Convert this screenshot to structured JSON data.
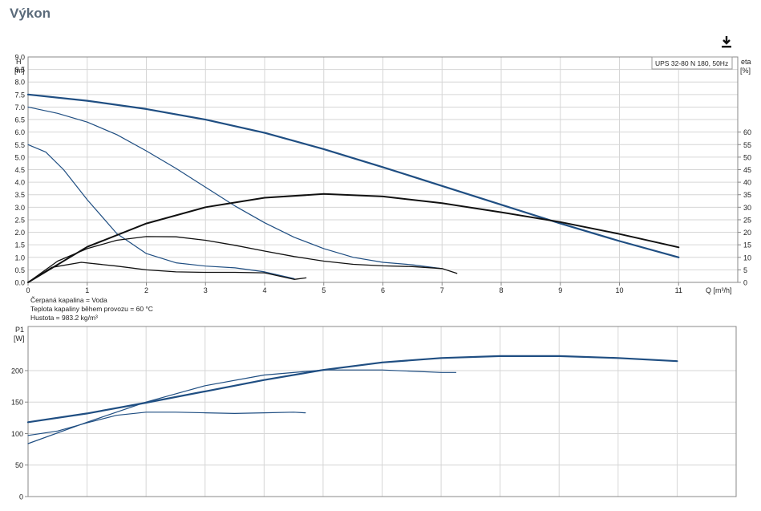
{
  "page": {
    "title": "Výkon",
    "download_icon": "download-icon"
  },
  "colors": {
    "blue": "#1f4e82",
    "black": "#111111",
    "grid": "#d6d6d6",
    "frame": "#888888"
  },
  "chart_data": [
    {
      "type": "line",
      "name": "head",
      "legend": "UPS 32-80 N 180, 50Hz",
      "y_label_top": "H",
      "y_unit": "[m]",
      "y2_label_top": "eta",
      "y2_unit": "[%]",
      "x_label": "Q [m³/h]",
      "xlim": [
        0,
        12
      ],
      "ylim": [
        0,
        9.0
      ],
      "y2lim": [
        0,
        90
      ],
      "x_ticks": [
        0,
        1,
        2,
        3,
        4,
        5,
        6,
        7,
        8,
        9,
        10,
        11
      ],
      "y_ticks": [
        "0.0",
        "0.5",
        "1.0",
        "1.5",
        "2.0",
        "2.5",
        "3.0",
        "3.5",
        "4.0",
        "4.5",
        "5.0",
        "5.5",
        "6.0",
        "6.5",
        "7.0",
        "7.5",
        "8.0",
        "8.5",
        "9.0"
      ],
      "y2_ticks": [
        0,
        5,
        10,
        15,
        20,
        25,
        30,
        35,
        40,
        45,
        50,
        55,
        60
      ],
      "notes": [
        "Čerpaná kapalina = Voda",
        "Teplota kapaliny během provozu = 60 °C",
        "Hustota = 983.2 kg/m³"
      ],
      "series": [
        {
          "axis": "H",
          "color": "blue",
          "width": 2.2,
          "points": [
            [
              0,
              7.5
            ],
            [
              1,
              7.25
            ],
            [
              2,
              6.92
            ],
            [
              3,
              6.5
            ],
            [
              4,
              5.97
            ],
            [
              5,
              5.32
            ],
            [
              6,
              4.6
            ],
            [
              7,
              3.85
            ],
            [
              8,
              3.1
            ],
            [
              9,
              2.35
            ],
            [
              10,
              1.65
            ],
            [
              11,
              1.0
            ]
          ]
        },
        {
          "axis": "H",
          "color": "blue",
          "width": 1.2,
          "points": [
            [
              0,
              7.0
            ],
            [
              0.5,
              6.75
            ],
            [
              1,
              6.4
            ],
            [
              1.5,
              5.9
            ],
            [
              2,
              5.25
            ],
            [
              2.5,
              4.55
            ],
            [
              3,
              3.8
            ],
            [
              3.5,
              3.05
            ],
            [
              4,
              2.38
            ],
            [
              4.5,
              1.8
            ],
            [
              5,
              1.35
            ],
            [
              5.5,
              1.0
            ],
            [
              6,
              0.8
            ],
            [
              6.5,
              0.7
            ],
            [
              7,
              0.55
            ]
          ]
        },
        {
          "axis": "H",
          "color": "blue",
          "width": 1.2,
          "points": [
            [
              0,
              5.5
            ],
            [
              0.3,
              5.2
            ],
            [
              0.6,
              4.5
            ],
            [
              1,
              3.3
            ],
            [
              1.5,
              1.95
            ],
            [
              2,
              1.15
            ],
            [
              2.5,
              0.78
            ],
            [
              3,
              0.65
            ],
            [
              3.5,
              0.58
            ],
            [
              4,
              0.42
            ],
            [
              4.5,
              0.15
            ]
          ]
        },
        {
          "axis": "eta",
          "color": "black",
          "width": 2.0,
          "points": [
            [
              0,
              0
            ],
            [
              1,
              14.2
            ],
            [
              2,
              23.5
            ],
            [
              3,
              30
            ],
            [
              4,
              33.8
            ],
            [
              5,
              35.3
            ],
            [
              6,
              34.3
            ],
            [
              7,
              31.6
            ],
            [
              8,
              28.0
            ],
            [
              9,
              24.1
            ],
            [
              10,
              19.3
            ],
            [
              11,
              14.0
            ]
          ]
        },
        {
          "axis": "eta",
          "color": "black",
          "width": 1.3,
          "points": [
            [
              0,
              0
            ],
            [
              0.5,
              8.5
            ],
            [
              1,
              13.5
            ],
            [
              1.5,
              16.8
            ],
            [
              2,
              18.3
            ],
            [
              2.5,
              18.2
            ],
            [
              3,
              16.8
            ],
            [
              3.5,
              14.8
            ],
            [
              4,
              12.5
            ],
            [
              4.5,
              10.3
            ],
            [
              5,
              8.5
            ],
            [
              5.5,
              7.2
            ],
            [
              6,
              6.6
            ],
            [
              6.5,
              6.3
            ],
            [
              7,
              5.5
            ],
            [
              7.25,
              3.6
            ]
          ]
        },
        {
          "axis": "eta",
          "color": "black",
          "width": 1.3,
          "points": [
            [
              0,
              0
            ],
            [
              0.4,
              6.0
            ],
            [
              0.9,
              8.0
            ],
            [
              1.5,
              6.5
            ],
            [
              2,
              5.0
            ],
            [
              2.5,
              4.2
            ],
            [
              3,
              4.0
            ],
            [
              3.5,
              4.0
            ],
            [
              4,
              3.8
            ],
            [
              4.5,
              1.2
            ],
            [
              4.7,
              1.8
            ]
          ]
        }
      ]
    },
    {
      "type": "line",
      "name": "power",
      "y_label_top": "P1",
      "y_unit": "[W]",
      "xlim": [
        0,
        12
      ],
      "ylim": [
        0,
        270
      ],
      "y_ticks": [
        0,
        50,
        100,
        150,
        200
      ],
      "series": [
        {
          "color": "blue",
          "width": 2.2,
          "points": [
            [
              0,
              118
            ],
            [
              1,
              132
            ],
            [
              2,
              149
            ],
            [
              3,
              167
            ],
            [
              4,
              185
            ],
            [
              5,
              201
            ],
            [
              6,
              213
            ],
            [
              7,
              220
            ],
            [
              8,
              223
            ],
            [
              9,
              223
            ],
            [
              10,
              220
            ],
            [
              11,
              215
            ]
          ]
        },
        {
          "color": "blue",
          "width": 1.2,
          "points": [
            [
              0,
              84
            ],
            [
              1,
              118
            ],
            [
              2,
              150
            ],
            [
              3,
              176
            ],
            [
              4,
              193
            ],
            [
              5,
              201
            ],
            [
              6,
              201
            ],
            [
              7,
              197
            ],
            [
              7.25,
              197
            ]
          ]
        },
        {
          "color": "blue",
          "width": 1.2,
          "points": [
            [
              0,
              97
            ],
            [
              0.5,
              104
            ],
            [
              1,
              117
            ],
            [
              1.5,
              129
            ],
            [
              2,
              134
            ],
            [
              2.5,
              134
            ],
            [
              3,
              133
            ],
            [
              3.5,
              132
            ],
            [
              4,
              133
            ],
            [
              4.5,
              134
            ],
            [
              4.7,
              133
            ]
          ]
        }
      ]
    }
  ]
}
